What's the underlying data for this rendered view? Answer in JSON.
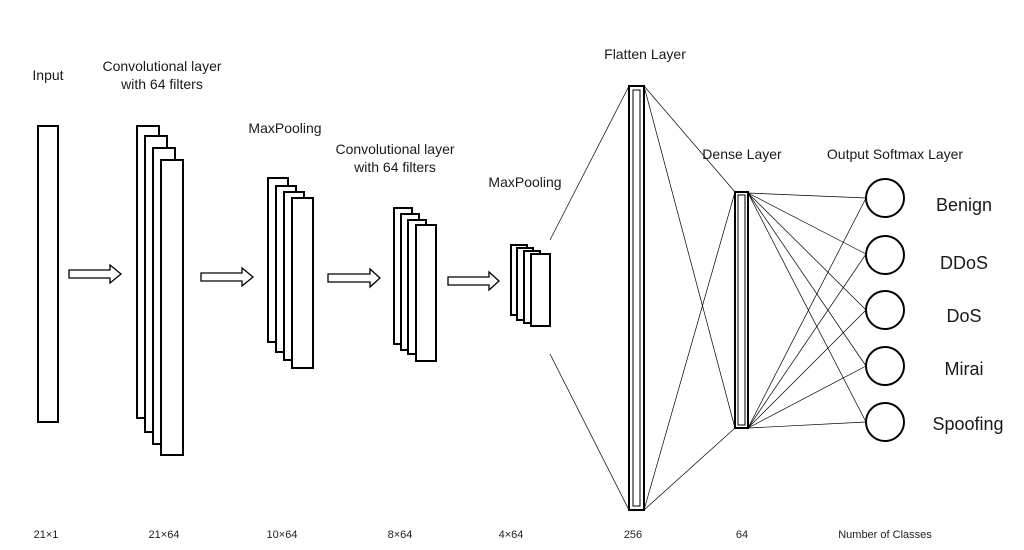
{
  "labels": {
    "input": "Input",
    "conv1_line1": "Convolutional layer",
    "conv1_line2": "with 64 filters",
    "maxpool1": "MaxPooling",
    "conv2_line1": "Convolutional layer",
    "conv2_line2": "with 64 filters",
    "maxpool2": "MaxPooling",
    "flatten": "Flatten Layer",
    "dense": "Dense Layer",
    "output": "Output Softmax Layer"
  },
  "classes": [
    "Benign",
    "DDoS",
    "DoS",
    "Mirai",
    "Spoofing"
  ],
  "dimensions": {
    "input": "21×1",
    "conv1": "21×64",
    "maxpool1": "10×64",
    "conv2": "8×64",
    "maxpool2": "4×64",
    "flatten": "256",
    "dense": "64",
    "output": "Number of Classes"
  }
}
